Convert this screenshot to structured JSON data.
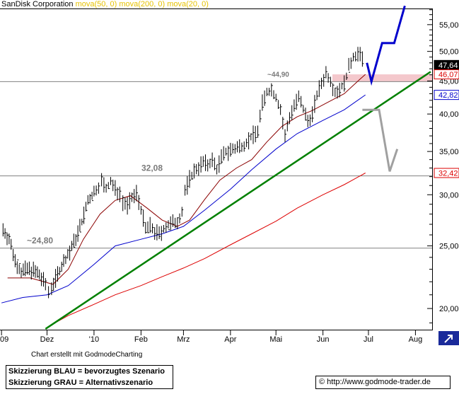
{
  "header": {
    "symbol": "SanDisk Corporation",
    "ma50": "mova(50, 0)",
    "ma200": "mova(200, 0)",
    "ma20": "mova(20, 0)"
  },
  "footer": {
    "credit": "Chart erstellt mit GodmodeCharting",
    "legend_blue": "Skizzierung BLAU = bevorzugtes Szenario",
    "legend_grey": "Skizzierung GRAU = Alternativszenario",
    "url": "© http://www.godmode-trader.de"
  },
  "colors": {
    "price": "#000000",
    "ma20": "#8b0000",
    "ma50": "#0000cc",
    "ma200": "#dd0000",
    "trendline": "#008000",
    "scenario_blue": "#0000cc",
    "scenario_grey": "#a0a0a0",
    "hline": "#808080",
    "resistance_zone": "#f4c8cc",
    "tag_red": "#dd0000",
    "tag_blue": "#0000cc",
    "tag_black": "#000000",
    "corner_icon": "#1a2a9a"
  },
  "chart_data": {
    "type": "line",
    "title": "SanDisk Corporation",
    "y_scale": "log",
    "ylim": [
      18.5,
      59
    ],
    "y_ticks": [
      "20,00",
      "25,00",
      "30,00",
      "35,00",
      "40,00",
      "45,00",
      "50,00",
      "55,00"
    ],
    "y_tick_values": [
      20,
      25,
      30,
      35,
      40,
      45,
      50,
      55
    ],
    "x_ticks": [
      "09",
      "Dez",
      "'10",
      "Feb",
      "Mrz",
      "Apr",
      "Mai",
      "Jun",
      "Jul",
      "Aug"
    ],
    "x_tick_dates": [
      "2009-11-01",
      "2009-12-01",
      "2010-01-01",
      "2010-02-01",
      "2010-03-01",
      "2010-04-01",
      "2010-05-01",
      "2010-06-01",
      "2010-07-01",
      "2010-08-01"
    ],
    "xlim": [
      "2009-10-31",
      "2010-08-12"
    ],
    "horizontal_levels": [
      {
        "value": 24.8,
        "label": "~24,80"
      },
      {
        "value": 32.08,
        "label": "32,08"
      },
      {
        "value": 44.9,
        "label": "~44,90"
      }
    ],
    "resistance_zone": [
      44.9,
      46.07
    ],
    "price_tags": [
      {
        "value": 47.64,
        "label": "47,64",
        "color": "black"
      },
      {
        "value": 46.07,
        "label": "46,07",
        "color": "red"
      },
      {
        "value": 42.82,
        "label": "42,82",
        "color": "blue"
      },
      {
        "value": 32.42,
        "label": "32,42",
        "color": "red"
      }
    ],
    "series": [
      {
        "role": "price",
        "points": [
          [
            "2009-11-02",
            26.5
          ],
          [
            "2009-11-06",
            25.6
          ],
          [
            "2009-11-10",
            23.7
          ],
          [
            "2009-11-14",
            22.8
          ],
          [
            "2009-11-18",
            23.0
          ],
          [
            "2009-11-22",
            22.9
          ],
          [
            "2009-11-26",
            22.5
          ],
          [
            "2009-11-30",
            21.8
          ],
          [
            "2009-12-02",
            21.2
          ],
          [
            "2009-12-04",
            21.6
          ],
          [
            "2009-12-08",
            22.6
          ],
          [
            "2009-12-12",
            23.6
          ],
          [
            "2009-12-16",
            24.5
          ],
          [
            "2009-12-20",
            25.7
          ],
          [
            "2009-12-24",
            27.2
          ],
          [
            "2009-12-28",
            29.3
          ],
          [
            "2010-01-01",
            30.2
          ],
          [
            "2010-01-04",
            31.0
          ],
          [
            "2010-01-06",
            31.5
          ],
          [
            "2010-01-09",
            30.6
          ],
          [
            "2010-01-12",
            31.4
          ],
          [
            "2010-01-15",
            30.6
          ],
          [
            "2010-01-18",
            30.2
          ],
          [
            "2010-01-20",
            29.3
          ],
          [
            "2010-01-23",
            28.9
          ],
          [
            "2010-01-26",
            29.6
          ],
          [
            "2010-01-29",
            30.2
          ],
          [
            "2010-02-01",
            28.5
          ],
          [
            "2010-02-04",
            26.5
          ],
          [
            "2010-02-07",
            26.8
          ],
          [
            "2010-02-10",
            26.3
          ],
          [
            "2010-02-13",
            26.0
          ],
          [
            "2010-02-16",
            26.6
          ],
          [
            "2010-02-19",
            26.9
          ],
          [
            "2010-02-22",
            27.1
          ],
          [
            "2010-02-25",
            27.3
          ],
          [
            "2010-02-28",
            28.2
          ],
          [
            "2010-03-02",
            30.4
          ],
          [
            "2010-03-05",
            31.7
          ],
          [
            "2010-03-08",
            32.6
          ],
          [
            "2010-03-11",
            33.2
          ],
          [
            "2010-03-14",
            33.6
          ],
          [
            "2010-03-17",
            33.4
          ],
          [
            "2010-03-20",
            33.9
          ],
          [
            "2010-03-23",
            32.9
          ],
          [
            "2010-03-26",
            34.2
          ],
          [
            "2010-03-29",
            34.9
          ],
          [
            "2010-04-01",
            35.2
          ],
          [
            "2010-04-04",
            35.3
          ],
          [
            "2010-04-07",
            35.6
          ],
          [
            "2010-04-10",
            35.9
          ],
          [
            "2010-04-13",
            36.5
          ],
          [
            "2010-04-16",
            37.1
          ],
          [
            "2010-04-19",
            37.7
          ],
          [
            "2010-04-22",
            41.5
          ],
          [
            "2010-04-25",
            43.2
          ],
          [
            "2010-04-28",
            43.6
          ],
          [
            "2010-05-01",
            42.4
          ],
          [
            "2010-05-04",
            40.6
          ],
          [
            "2010-05-07",
            36.9
          ],
          [
            "2010-05-10",
            39.6
          ],
          [
            "2010-05-13",
            41.2
          ],
          [
            "2010-05-16",
            42.3
          ],
          [
            "2010-05-19",
            40.6
          ],
          [
            "2010-05-22",
            39.0
          ],
          [
            "2010-05-25",
            40.0
          ],
          [
            "2010-05-28",
            42.8
          ],
          [
            "2010-05-31",
            44.6
          ],
          [
            "2010-06-03",
            46.3
          ],
          [
            "2010-06-06",
            45.1
          ],
          [
            "2010-06-09",
            43.2
          ],
          [
            "2010-06-12",
            43.8
          ],
          [
            "2010-06-15",
            44.5
          ],
          [
            "2010-06-18",
            47.2
          ],
          [
            "2010-06-21",
            49.1
          ],
          [
            "2010-06-24",
            49.6
          ],
          [
            "2010-06-27",
            48.7
          ],
          [
            "2010-06-29",
            47.64
          ]
        ]
      },
      {
        "role": "ma20",
        "points": [
          [
            "2009-11-05",
            22.3
          ],
          [
            "2009-11-20",
            22.3
          ],
          [
            "2009-12-05",
            21.8
          ],
          [
            "2009-12-15",
            23.0
          ],
          [
            "2009-12-25",
            25.6
          ],
          [
            "2010-01-05",
            28.0
          ],
          [
            "2010-01-15",
            29.4
          ],
          [
            "2010-01-25",
            29.9
          ],
          [
            "2010-02-05",
            28.6
          ],
          [
            "2010-02-15",
            27.4
          ],
          [
            "2010-02-25",
            26.8
          ],
          [
            "2010-03-05",
            27.4
          ],
          [
            "2010-03-15",
            29.5
          ],
          [
            "2010-03-25",
            31.6
          ],
          [
            "2010-04-05",
            33.0
          ],
          [
            "2010-04-15",
            34.0
          ],
          [
            "2010-04-25",
            36.2
          ],
          [
            "2010-05-05",
            38.3
          ],
          [
            "2010-05-15",
            39.6
          ],
          [
            "2010-05-25",
            40.5
          ],
          [
            "2010-06-05",
            41.8
          ],
          [
            "2010-06-15",
            43.0
          ],
          [
            "2010-06-25",
            45.2
          ],
          [
            "2010-06-29",
            46.07
          ]
        ]
      },
      {
        "role": "ma50",
        "points": [
          [
            "2009-11-01",
            20.4
          ],
          [
            "2009-11-15",
            20.8
          ],
          [
            "2009-12-01",
            21.0
          ],
          [
            "2009-12-15",
            21.7
          ],
          [
            "2010-01-01",
            23.4
          ],
          [
            "2010-01-15",
            25.0
          ],
          [
            "2010-02-01",
            25.6
          ],
          [
            "2010-02-15",
            26.1
          ],
          [
            "2010-03-01",
            26.8
          ],
          [
            "2010-03-15",
            28.4
          ],
          [
            "2010-04-01",
            30.6
          ],
          [
            "2010-04-15",
            32.8
          ],
          [
            "2010-05-01",
            35.3
          ],
          [
            "2010-05-15",
            37.3
          ],
          [
            "2010-06-01",
            39.1
          ],
          [
            "2010-06-15",
            40.6
          ],
          [
            "2010-06-29",
            42.82
          ]
        ]
      },
      {
        "role": "ma200",
        "points": [
          [
            "2009-12-01",
            18.7
          ],
          [
            "2009-12-15",
            19.5
          ],
          [
            "2010-01-01",
            20.3
          ],
          [
            "2010-01-15",
            21.0
          ],
          [
            "2010-02-01",
            21.7
          ],
          [
            "2010-02-15",
            22.4
          ],
          [
            "2010-03-01",
            23.1
          ],
          [
            "2010-03-15",
            23.9
          ],
          [
            "2010-04-01",
            25.1
          ],
          [
            "2010-04-15",
            26.1
          ],
          [
            "2010-05-01",
            27.3
          ],
          [
            "2010-05-15",
            28.6
          ],
          [
            "2010-06-01",
            30.0
          ],
          [
            "2010-06-15",
            31.1
          ],
          [
            "2010-06-29",
            32.42
          ]
        ]
      },
      {
        "role": "trendline",
        "points": [
          [
            "2009-11-30",
            18.6
          ],
          [
            "2010-08-11",
            46.5
          ]
        ]
      },
      {
        "role": "scenario_blue",
        "points": [
          [
            "2010-06-30",
            48.0
          ],
          [
            "2010-07-03",
            44.9
          ],
          [
            "2010-07-10",
            51.5
          ],
          [
            "2010-07-18",
            51.5
          ],
          [
            "2010-07-25",
            58.8
          ]
        ]
      },
      {
        "role": "scenario_grey",
        "points": [
          [
            "2010-06-27",
            40.6
          ],
          [
            "2010-07-08",
            40.6
          ],
          [
            "2010-07-15",
            32.6
          ],
          [
            "2010-07-20",
            35.3
          ]
        ]
      }
    ]
  }
}
